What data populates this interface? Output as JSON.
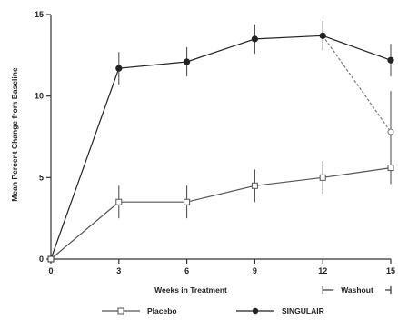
{
  "chart_data": {
    "type": "line",
    "xlabel": "Weeks in Treatment",
    "ylabel": "Mean Percent Change from Baseline",
    "x": [
      0,
      3,
      6,
      9,
      12,
      15
    ],
    "x_ticks": [
      "0",
      "3",
      "6",
      "9",
      "12",
      "15"
    ],
    "y_ticks": [
      "0",
      "5",
      "10",
      "15"
    ],
    "xlim": [
      0,
      15
    ],
    "ylim": [
      0,
      15
    ],
    "washout_label": "Washout",
    "washout_range": [
      12,
      15
    ],
    "grid": false,
    "legend_position": "bottom",
    "series": [
      {
        "name": "Placebo",
        "marker": "open-square",
        "line_style": "solid",
        "color": "#555555",
        "points": [
          {
            "x": 0,
            "y": 0,
            "err": 0
          },
          {
            "x": 3,
            "y": 3.5,
            "err": 1.0
          },
          {
            "x": 6,
            "y": 3.5,
            "err": 1.0
          },
          {
            "x": 9,
            "y": 4.5,
            "err": 1.0
          },
          {
            "x": 12,
            "y": 5.0,
            "err": 1.0
          },
          {
            "x": 15,
            "y": 5.6,
            "err": 1.0
          }
        ]
      },
      {
        "name": "SINGULAIR",
        "marker": "filled-circle",
        "line_style": "solid",
        "color": "#222222",
        "points": [
          {
            "x": 0,
            "y": 0,
            "err": 0
          },
          {
            "x": 3,
            "y": 11.7,
            "err": 1.0
          },
          {
            "x": 6,
            "y": 12.1,
            "err": 0.9
          },
          {
            "x": 9,
            "y": 13.5,
            "err": 0.9
          },
          {
            "x": 12,
            "y": 13.7,
            "err": 0.9
          },
          {
            "x": 15,
            "y": 12.2,
            "err": 1.0
          }
        ]
      },
      {
        "name": "",
        "marker": "open-circle",
        "line_style": "dashed",
        "color": "#777777",
        "points": [
          {
            "x": 12,
            "y": 13.7,
            "err": 0
          },
          {
            "x": 15,
            "y": 7.8,
            "err": 2.5
          }
        ]
      }
    ]
  }
}
